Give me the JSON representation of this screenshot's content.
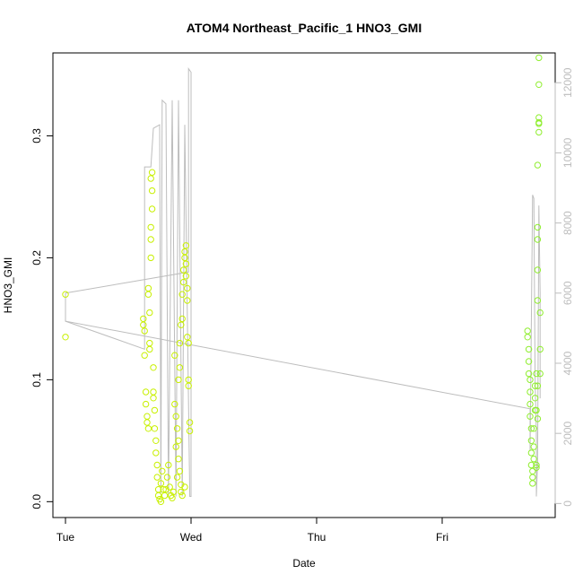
{
  "chart_data": {
    "type": "scatter",
    "title": "ATOM4 Northeast_Pacific_1 HNO3_GMI",
    "xlabel": "Date",
    "ylabel": "HNO3_GMI",
    "ylabel_right": "",
    "x_ticks": [
      "Tue",
      "Wed",
      "Thu",
      "Fri"
    ],
    "y_ticks": [
      "0.0",
      "0.1",
      "0.2",
      "0.3"
    ],
    "y_right_ticks": [
      "0",
      "2000",
      "4000",
      "6000",
      "8000",
      "10000",
      "12000"
    ],
    "ylim": [
      -0.013,
      0.368
    ],
    "y_right_lim": [
      -400,
      12850
    ],
    "xlim": [
      -0.1,
      3.9
    ],
    "x_units": "days since Tue 00:00",
    "grid": false,
    "legend": "none",
    "colors": {
      "points_early": "#c8f000",
      "points_late": "#90ee30",
      "line": "#bdbdbd",
      "axes": "#000000"
    },
    "series": [
      {
        "kind": "points",
        "axis": "left",
        "points": [
          [
            0.0,
            0.17
          ],
          [
            0.0,
            0.135
          ],
          [
            0.62,
            0.15
          ],
          [
            0.62,
            0.145
          ],
          [
            0.63,
            0.14
          ],
          [
            0.63,
            0.12
          ],
          [
            0.64,
            0.09
          ],
          [
            0.64,
            0.08
          ],
          [
            0.65,
            0.07
          ],
          [
            0.65,
            0.065
          ],
          [
            0.66,
            0.06
          ],
          [
            0.66,
            0.175
          ],
          [
            0.66,
            0.17
          ],
          [
            0.67,
            0.155
          ],
          [
            0.67,
            0.13
          ],
          [
            0.67,
            0.125
          ],
          [
            0.68,
            0.2
          ],
          [
            0.68,
            0.215
          ],
          [
            0.68,
            0.225
          ],
          [
            0.69,
            0.24
          ],
          [
            0.69,
            0.255
          ],
          [
            0.68,
            0.265
          ],
          [
            0.69,
            0.27
          ],
          [
            0.7,
            0.11
          ],
          [
            0.7,
            0.09
          ],
          [
            0.7,
            0.085
          ],
          [
            0.71,
            0.075
          ],
          [
            0.71,
            0.06
          ],
          [
            0.72,
            0.05
          ],
          [
            0.72,
            0.04
          ],
          [
            0.73,
            0.03
          ],
          [
            0.73,
            0.02
          ],
          [
            0.74,
            0.01
          ],
          [
            0.74,
            0.005
          ],
          [
            0.75,
            0.002
          ],
          [
            0.76,
            0.0
          ],
          [
            0.76,
            0.015
          ],
          [
            0.77,
            0.025
          ],
          [
            0.78,
            0.01
          ],
          [
            0.79,
            0.005
          ],
          [
            0.8,
            0.01
          ],
          [
            0.81,
            0.02
          ],
          [
            0.82,
            0.03
          ],
          [
            0.83,
            0.012
          ],
          [
            0.84,
            0.005
          ],
          [
            0.85,
            0.003
          ],
          [
            0.86,
            0.008
          ],
          [
            0.87,
            0.12
          ],
          [
            0.87,
            0.08
          ],
          [
            0.88,
            0.07
          ],
          [
            0.89,
            0.06
          ],
          [
            0.9,
            0.05
          ],
          [
            0.9,
            0.1
          ],
          [
            0.91,
            0.13
          ],
          [
            0.91,
            0.11
          ],
          [
            0.92,
            0.145
          ],
          [
            0.93,
            0.15
          ],
          [
            0.93,
            0.17
          ],
          [
            0.94,
            0.18
          ],
          [
            0.94,
            0.19
          ],
          [
            0.95,
            0.2
          ],
          [
            0.95,
            0.205
          ],
          [
            0.96,
            0.21
          ],
          [
            0.96,
            0.195
          ],
          [
            0.96,
            0.185
          ],
          [
            0.97,
            0.175
          ],
          [
            0.97,
            0.165
          ],
          [
            0.97,
            0.135
          ],
          [
            0.98,
            0.13
          ],
          [
            0.98,
            0.1
          ],
          [
            0.98,
            0.095
          ],
          [
            0.99,
            0.065
          ],
          [
            0.99,
            0.058
          ],
          [
            0.9,
            0.035
          ],
          [
            0.91,
            0.025
          ],
          [
            0.92,
            0.014
          ],
          [
            0.92,
            0.008
          ],
          [
            0.93,
            0.005
          ],
          [
            0.95,
            0.012
          ],
          [
            0.88,
            0.045
          ],
          [
            0.89,
            0.02
          ]
        ]
      },
      {
        "kind": "points",
        "axis": "left",
        "points": [
          [
            3.68,
            0.14
          ],
          [
            3.68,
            0.135
          ],
          [
            3.69,
            0.125
          ],
          [
            3.69,
            0.115
          ],
          [
            3.69,
            0.105
          ],
          [
            3.7,
            0.1
          ],
          [
            3.7,
            0.09
          ],
          [
            3.7,
            0.08
          ],
          [
            3.7,
            0.07
          ],
          [
            3.71,
            0.06
          ],
          [
            3.71,
            0.05
          ],
          [
            3.71,
            0.04
          ],
          [
            3.71,
            0.03
          ],
          [
            3.72,
            0.02
          ],
          [
            3.72,
            0.015
          ],
          [
            3.72,
            0.025
          ],
          [
            3.73,
            0.035
          ],
          [
            3.73,
            0.045
          ],
          [
            3.73,
            0.06
          ],
          [
            3.74,
            0.075
          ],
          [
            3.74,
            0.085
          ],
          [
            3.74,
            0.095
          ],
          [
            3.75,
            0.105
          ],
          [
            3.75,
            0.075
          ],
          [
            3.75,
            0.028
          ],
          [
            3.75,
            0.03
          ],
          [
            3.76,
            0.068
          ],
          [
            3.76,
            0.095
          ],
          [
            3.76,
            0.165
          ],
          [
            3.76,
            0.19
          ],
          [
            3.76,
            0.215
          ],
          [
            3.76,
            0.225
          ],
          [
            3.76,
            0.276
          ],
          [
            3.77,
            0.303
          ],
          [
            3.77,
            0.31
          ],
          [
            3.77,
            0.311
          ],
          [
            3.77,
            0.315
          ],
          [
            3.77,
            0.342
          ],
          [
            3.77,
            0.364
          ],
          [
            3.78,
            0.155
          ],
          [
            3.78,
            0.125
          ],
          [
            3.78,
            0.105
          ]
        ]
      },
      {
        "kind": "line",
        "axis": "right",
        "points": [
          [
            0.0,
            6000
          ],
          [
            0.0,
            5200
          ],
          [
            3.7,
            2700
          ],
          [
            3.7,
            1500
          ],
          [
            3.72,
            8800
          ],
          [
            3.73,
            8700
          ],
          [
            3.74,
            3500
          ],
          [
            3.75,
            2000
          ],
          [
            3.75,
            200
          ],
          [
            3.76,
            1200
          ],
          [
            3.77,
            8500
          ],
          [
            3.78,
            6000
          ],
          [
            3.78,
            3000
          ]
        ]
      },
      {
        "kind": "line",
        "axis": "right",
        "points": [
          [
            0.0,
            6000
          ],
          [
            0.98,
            6600
          ],
          [
            0.98,
            12400
          ],
          [
            1.0,
            12300
          ],
          [
            1.0,
            200
          ],
          [
            0.99,
            200
          ],
          [
            0.95,
            10800
          ],
          [
            0.93,
            200
          ],
          [
            0.9,
            11500
          ],
          [
            0.88,
            200
          ],
          [
            0.85,
            11500
          ],
          [
            0.82,
            200
          ],
          [
            0.8,
            11400
          ],
          [
            0.77,
            11500
          ],
          [
            0.76,
            300
          ],
          [
            0.75,
            10800
          ],
          [
            0.7,
            10700
          ],
          [
            0.68,
            9600
          ],
          [
            0.63,
            9600
          ],
          [
            0.63,
            4400
          ],
          [
            0.0,
            5200
          ]
        ]
      }
    ]
  }
}
